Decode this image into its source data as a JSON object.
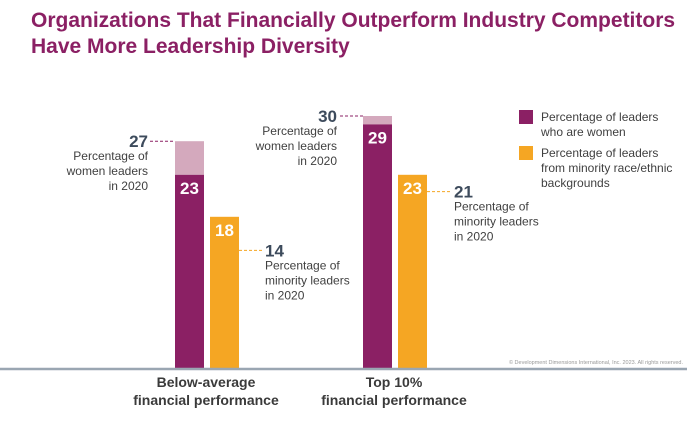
{
  "title_lines": [
    "Organizations That Financially Outperform Industry Competitors",
    "Have More Leadership Diversity"
  ],
  "colors": {
    "title": "#8b2064",
    "women": "#8b2064",
    "women_light": "#d4a9bd",
    "minority": "#f5a623",
    "axis": "#9aa6b2",
    "dark_text": "#3d4b5c",
    "body_text": "#404040"
  },
  "copyright": "© Development Dimensions International, Inc. 2023. All rights reserved.",
  "chart_data": {
    "type": "bar",
    "categories": [
      [
        "Below-average",
        "financial performance"
      ],
      [
        "Top 10%",
        "financial performance"
      ]
    ],
    "series": [
      {
        "name": "Percentage of leaders who are women",
        "legend_lines": [
          "Percentage of leaders",
          "who are women"
        ],
        "values": [
          23,
          29
        ],
        "prior_values": [
          27,
          30
        ]
      },
      {
        "name": "Percentage of leaders from minority race/ethnic backgrounds",
        "legend_lines": [
          "Percentage of leaders",
          "from minority race/ethnic",
          "backgrounds"
        ],
        "values": [
          18,
          23
        ],
        "prior_values": [
          14,
          21
        ]
      }
    ],
    "annotations": {
      "women_2020": [
        "Percentage of",
        "women leaders",
        "in 2020"
      ],
      "women_2020_top": [
        "Percentage of",
        "women leaders",
        "in 2020"
      ],
      "minority_2020": [
        "Percentage of",
        "minority leaders",
        "in 2020"
      ],
      "minority_2020_top": [
        "Percentage of",
        "minority leaders",
        "in 2020"
      ]
    },
    "ylim": [
      0,
      30
    ],
    "grid": false,
    "legend_position": "top-right"
  }
}
